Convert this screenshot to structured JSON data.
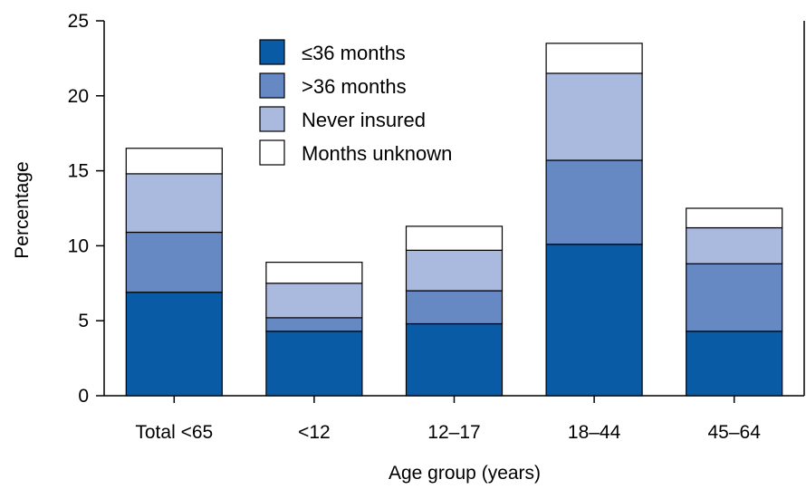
{
  "chart_data": {
    "type": "bar",
    "stacked": true,
    "categories": [
      "Total <65",
      "<12",
      "12–17",
      "18–44",
      "45–64"
    ],
    "series": [
      {
        "name": "≤36 months",
        "values": [
          6.9,
          4.3,
          4.8,
          10.1,
          4.3
        ],
        "color": "#0a5ba6"
      },
      {
        "name": ">36 months",
        "values": [
          4.0,
          0.9,
          2.2,
          5.6,
          4.5
        ],
        "color": "#6689c4"
      },
      {
        "name": "Never insured",
        "values": [
          3.9,
          2.3,
          2.7,
          5.8,
          2.4
        ],
        "color": "#aab9de"
      },
      {
        "name": "Months unknown",
        "values": [
          1.7,
          1.4,
          1.6,
          2.0,
          1.3
        ],
        "color": "#ffffff"
      }
    ],
    "xlabel": "Age group (years)",
    "ylabel": "Percentage",
    "ylim": [
      0,
      25
    ],
    "yticks": [
      0,
      5,
      10,
      15,
      20,
      25
    ],
    "legend_position": "top-center"
  }
}
